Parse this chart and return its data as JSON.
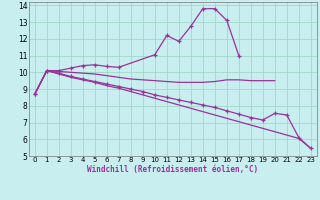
{
  "xlabel": "Windchill (Refroidissement éolien,°C)",
  "xlim": [
    -0.5,
    23.5
  ],
  "ylim": [
    5,
    14.2
  ],
  "yticks": [
    5,
    6,
    7,
    8,
    9,
    10,
    11,
    12,
    13,
    14
  ],
  "xticks": [
    0,
    1,
    2,
    3,
    4,
    5,
    6,
    7,
    8,
    9,
    10,
    11,
    12,
    13,
    14,
    15,
    16,
    17,
    18,
    19,
    20,
    21,
    22,
    23
  ],
  "background_color": "#c8eef0",
  "grid_color": "#a0d8c8",
  "line_color": "#993399",
  "series": [
    {
      "x": [
        0,
        1,
        2,
        3,
        4,
        5,
        6,
        7,
        10,
        11,
        12,
        13,
        14,
        15,
        16,
        17
      ],
      "y": [
        8.7,
        10.1,
        10.1,
        10.25,
        10.4,
        10.45,
        10.35,
        10.3,
        11.05,
        12.2,
        11.85,
        12.75,
        13.8,
        13.8,
        13.1,
        11.0
      ],
      "marker": true
    },
    {
      "x": [
        0,
        1,
        2,
        3,
        4,
        5,
        6,
        7,
        8,
        9,
        10,
        11,
        12,
        13,
        14,
        15,
        16,
        17,
        18,
        19,
        20
      ],
      "y": [
        8.7,
        10.1,
        10.05,
        10.0,
        9.95,
        9.9,
        9.8,
        9.7,
        9.6,
        9.55,
        9.5,
        9.45,
        9.4,
        9.4,
        9.4,
        9.45,
        9.55,
        9.55,
        9.5,
        9.5,
        9.5
      ],
      "marker": false
    },
    {
      "x": [
        0,
        1,
        2,
        3,
        4,
        5,
        6,
        7,
        8,
        9,
        10,
        11,
        12,
        13,
        14,
        15,
        16,
        17,
        18,
        19,
        20,
        21,
        22,
        23
      ],
      "y": [
        8.7,
        10.1,
        9.95,
        9.75,
        9.6,
        9.45,
        9.3,
        9.15,
        9.0,
        8.85,
        8.65,
        8.5,
        8.35,
        8.2,
        8.05,
        7.9,
        7.7,
        7.5,
        7.3,
        7.15,
        7.55,
        7.45,
        6.1,
        5.45
      ],
      "marker": true
    },
    {
      "x": [
        0,
        1,
        2,
        3,
        4,
        5,
        6,
        7,
        8,
        9,
        10,
        11,
        12,
        13,
        14,
        15,
        16,
        17,
        18,
        19,
        20,
        21,
        22,
        23
      ],
      "y": [
        8.7,
        10.1,
        9.9,
        9.7,
        9.55,
        9.4,
        9.2,
        9.05,
        8.85,
        8.65,
        8.45,
        8.25,
        8.05,
        7.85,
        7.65,
        7.45,
        7.25,
        7.05,
        6.85,
        6.65,
        6.45,
        6.25,
        6.05,
        5.45
      ],
      "marker": false
    }
  ]
}
